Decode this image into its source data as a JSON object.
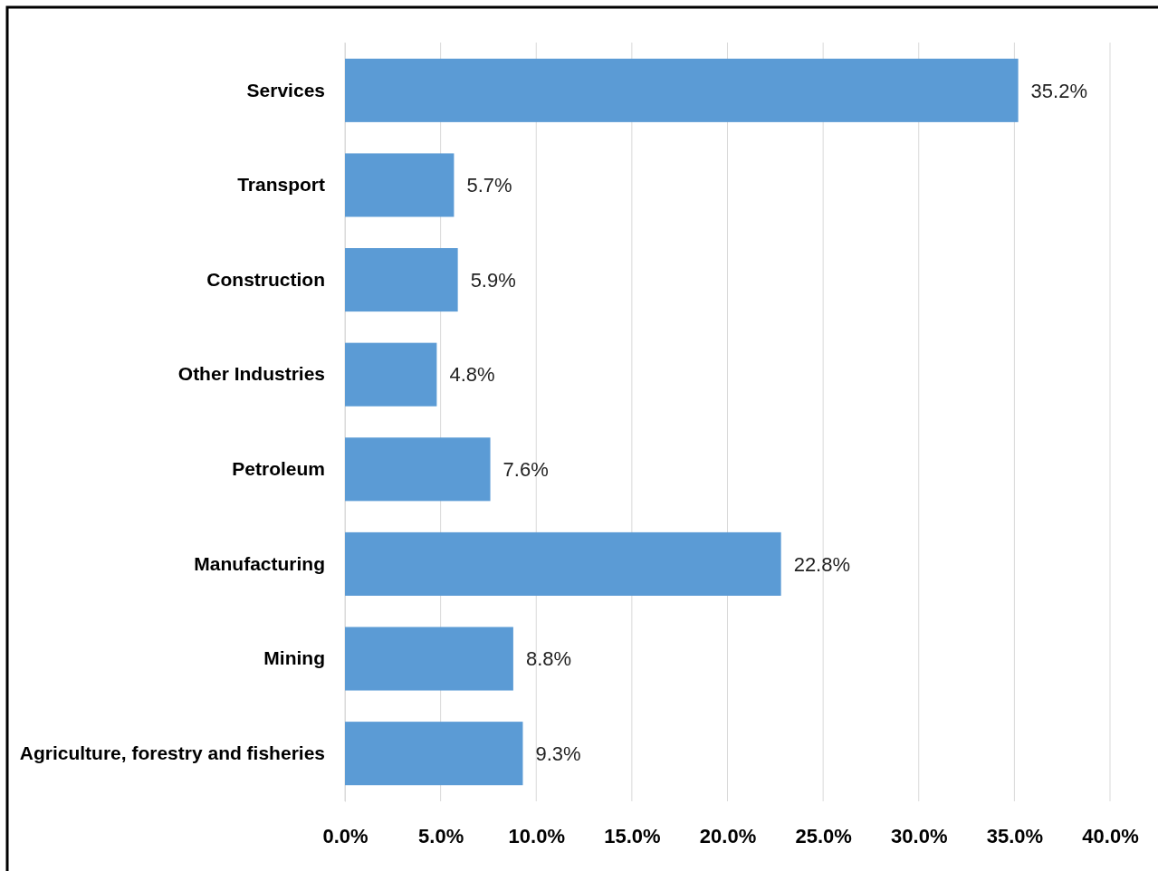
{
  "chart_data": {
    "type": "bar",
    "orientation": "horizontal",
    "categories": [
      "Services",
      "Transport",
      "Construction",
      "Other Industries",
      "Petroleum",
      "Manufacturing",
      "Mining",
      "Agriculture, forestry and fisheries"
    ],
    "values": [
      35.2,
      5.7,
      5.9,
      4.8,
      7.6,
      22.8,
      8.8,
      9.3
    ],
    "value_labels": [
      "35.2%",
      "5.7%",
      "5.9%",
      "4.8%",
      "7.6%",
      "22.8%",
      "8.8%",
      "9.3%"
    ],
    "color": "#5b9bd5",
    "xlim": [
      0,
      40
    ],
    "xticks": [
      {
        "value": 0,
        "label": "0.0%"
      },
      {
        "value": 5,
        "label": "5.0%"
      },
      {
        "value": 10,
        "label": "10.0%"
      },
      {
        "value": 15,
        "label": "15.0%"
      },
      {
        "value": 20,
        "label": "20.0%"
      },
      {
        "value": 25,
        "label": "25.0%"
      },
      {
        "value": 30,
        "label": "30.0%"
      },
      {
        "value": 35,
        "label": "35.0%"
      },
      {
        "value": 40,
        "label": "40.0%"
      }
    ],
    "grid": "x"
  }
}
